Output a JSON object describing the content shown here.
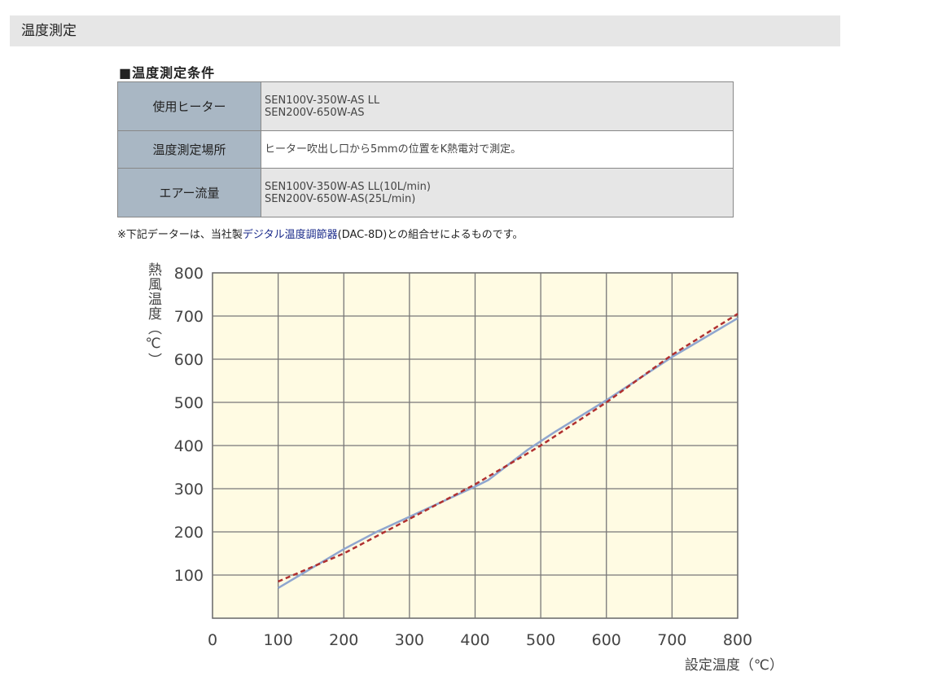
{
  "header": {
    "title": "温度測定"
  },
  "conditions": {
    "title": "■温度測定条件",
    "rows": [
      {
        "label": "使用ヒーター",
        "lines": [
          "SEN100V-350W-AS LL",
          "SEN200V-650W-AS"
        ]
      },
      {
        "label": "温度測定場所",
        "lines": [
          "ヒーター吹出し口から5mmの位置をK熱電対で測定。"
        ]
      },
      {
        "label": "エアー流量",
        "lines": [
          "SEN100V-350W-AS LL(10L/min)",
          "SEN200V-650W-AS(25L/min)"
        ]
      }
    ]
  },
  "note": {
    "prefix": "※下記データーは、当社製",
    "link": "デジタル温度調節器",
    "suffix": "(DAC-8D)との組合せによるものです。"
  },
  "chart_data": {
    "type": "line",
    "xlabel": "設定温度（℃）",
    "ylabel": "熱風温度（℃）",
    "xlim": [
      0,
      800
    ],
    "ylim": [
      0,
      800
    ],
    "x_ticks": [
      "0",
      "100",
      "200",
      "300",
      "400",
      "500",
      "600",
      "700",
      "800"
    ],
    "y_ticks": [
      "100",
      "200",
      "300",
      "400",
      "500",
      "600",
      "700",
      "800"
    ],
    "grid": true,
    "background": "#fffbe3",
    "series": [
      {
        "color": "#8fa6cf",
        "style": "solid",
        "x": [
          100,
          200,
          250,
          300,
          400,
          420,
          480,
          520,
          600,
          700,
          800
        ],
        "y": [
          70,
          160,
          200,
          235,
          305,
          320,
          390,
          430,
          505,
          605,
          695
        ]
      },
      {
        "color": "#b03030",
        "style": "dashed",
        "x": [
          100,
          200,
          300,
          400,
          500,
          600,
          700,
          800
        ],
        "y": [
          85,
          150,
          230,
          310,
          400,
          500,
          610,
          705
        ]
      }
    ]
  }
}
